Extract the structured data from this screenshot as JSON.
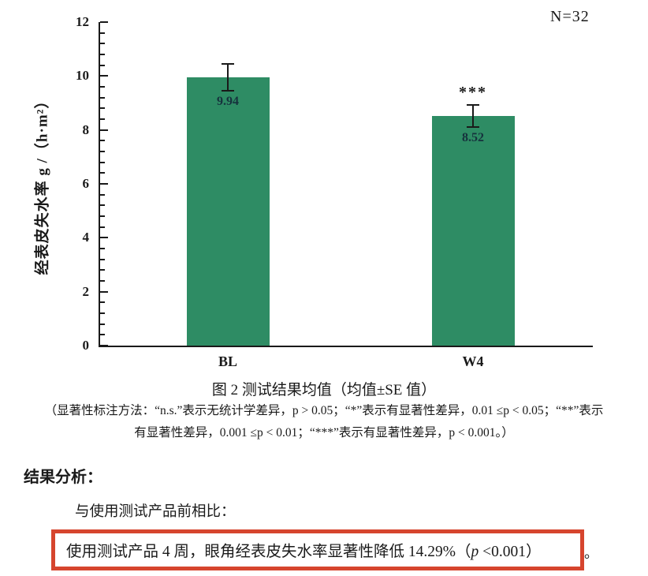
{
  "chart_data": {
    "type": "bar",
    "title": "图 2  测试结果均值（均值±SE 值）",
    "categories": [
      "BL",
      "W4"
    ],
    "values": [
      9.94,
      8.52
    ],
    "value_labels": [
      "9.94",
      "8.52"
    ],
    "errors_se": [
      0.5,
      0.42
    ],
    "significance": [
      "",
      "***"
    ],
    "xlabel": "",
    "ylabel": "经表皮失水率 g /（h·m²）",
    "ylim": [
      0,
      12
    ],
    "yticks": [
      0,
      2,
      4,
      6,
      8,
      10,
      12
    ],
    "minor_ticks_per_major": 4,
    "annotation": "N=32",
    "bar_color": "#2e8c64",
    "axis_color": "#1a1a1a",
    "value_label_color": "#16323d",
    "grid": false,
    "legend": "none"
  },
  "caption": {
    "text": "图 2  测试结果均值（均值±SE 值）"
  },
  "notes": {
    "line1": "（显著性标注方法：“n.s.”表示无统计学差异，p > 0.05；“*”表示有显著性差异，0.01 ≤p < 0.05；“**”表示",
    "line2": "有显著性差异，0.001 ≤p < 0.01；“***”表示有显著性差异，p < 0.001。）"
  },
  "analysis": {
    "heading": "结果分析：",
    "intro": "与使用测试产品前相比：",
    "highlight_part1": "使用测试产品 4 周，眼角经表皮失水率显著性降低 14.29%（",
    "p_symbol": "p",
    "highlight_part2": " <0.001）",
    "trailing": "。",
    "box_color": "#d6452e"
  }
}
